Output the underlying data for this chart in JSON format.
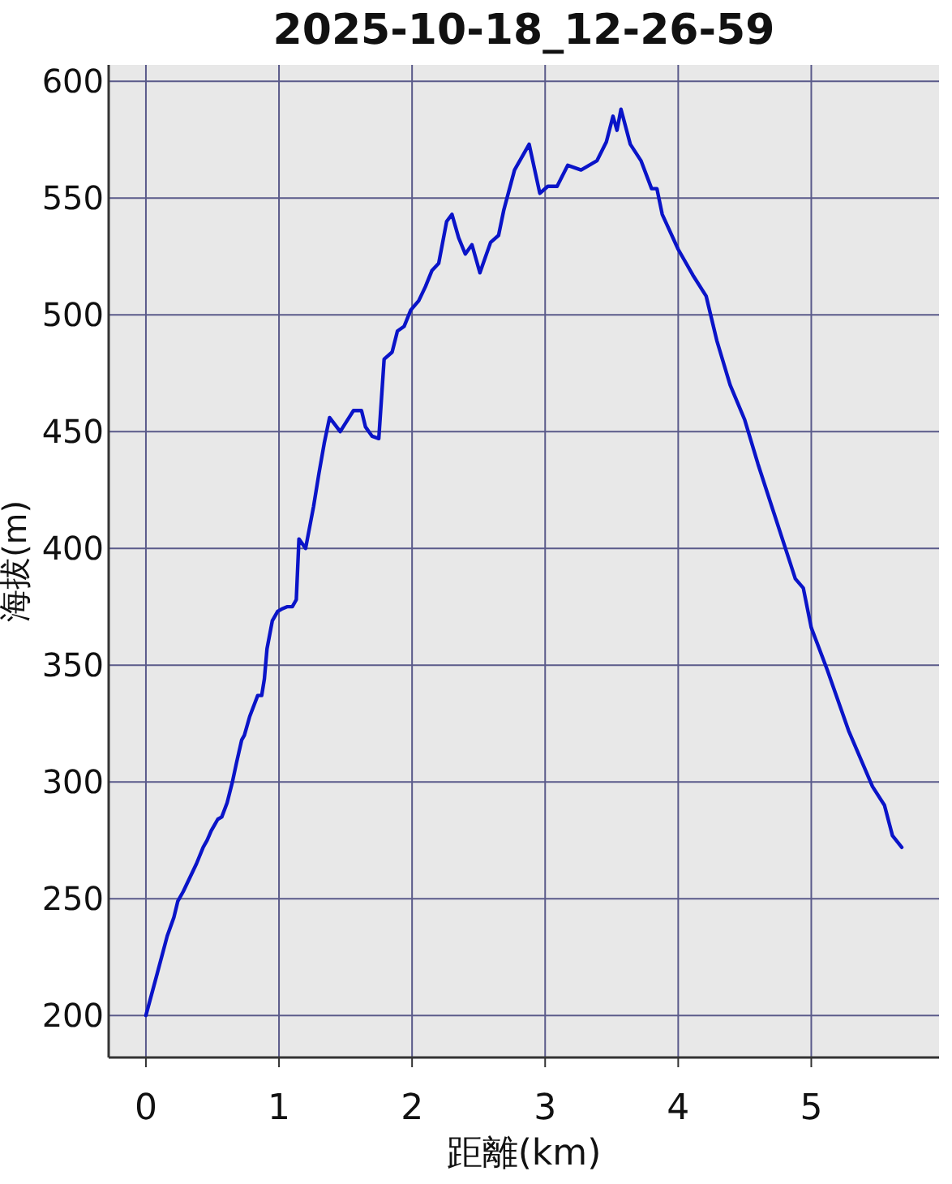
{
  "chart_data": {
    "type": "line",
    "title": "2025-10-18_12-26-59",
    "xlabel": "距離(km)",
    "ylabel": "海拔(m)",
    "x": [
      0,
      0.085,
      0.16,
      0.21,
      0.24,
      0.28,
      0.33,
      0.38,
      0.43,
      0.46,
      0.49,
      0.54,
      0.57,
      0.61,
      0.65,
      0.68,
      0.72,
      0.74,
      0.78,
      0.82,
      0.84,
      0.87,
      0.89,
      0.91,
      0.95,
      0.99,
      1.02,
      1.06,
      1.1,
      1.13,
      1.15,
      1.2,
      1.26,
      1.3,
      1.34,
      1.38,
      1.46,
      1.56,
      1.62,
      1.65,
      1.7,
      1.75,
      1.79,
      1.85,
      1.89,
      1.94,
      1.99,
      2.05,
      2.1,
      2.15,
      2.2,
      2.26,
      2.3,
      2.35,
      2.4,
      2.45,
      2.51,
      2.59,
      2.65,
      2.69,
      2.77,
      2.88,
      2.96,
      3.02,
      3.09,
      3.17,
      3.27,
      3.39,
      3.46,
      3.51,
      3.54,
      3.57,
      3.64,
      3.72,
      3.8,
      3.84,
      3.88,
      4.0,
      4.11,
      4.21,
      4.29,
      4.39,
      4.5,
      4.6,
      4.72,
      4.84,
      4.88,
      4.94,
      5.0,
      5.12,
      5.28,
      5.46,
      5.55,
      5.61,
      5.68
    ],
    "values": [
      200,
      218,
      234,
      242,
      249,
      253,
      259,
      265,
      272,
      275,
      279,
      284,
      285,
      291,
      300,
      308,
      318,
      320,
      328,
      334,
      337,
      337,
      344,
      357,
      369,
      373,
      374,
      375,
      375,
      378,
      404,
      400,
      418,
      432,
      445,
      456,
      450,
      459,
      459,
      452,
      448,
      447,
      481,
      484,
      493,
      495,
      502,
      506,
      512,
      519,
      522,
      540,
      543,
      533,
      526,
      530,
      518,
      531,
      534,
      545,
      562,
      573,
      552,
      555,
      555,
      564,
      562,
      566,
      574,
      585,
      579,
      588,
      573,
      566,
      554,
      554,
      543,
      528,
      517,
      508,
      489,
      470,
      455,
      436,
      415,
      394,
      387,
      383,
      366,
      348,
      322,
      298,
      290,
      277,
      272
    ],
    "color": "#0a14c8",
    "xlim": [
      -0.28,
      5.96
    ],
    "ylim": [
      182,
      607
    ],
    "xticks": [
      0,
      1,
      2,
      3,
      4,
      5
    ],
    "yticks": [
      200,
      250,
      300,
      350,
      400,
      450,
      500,
      550,
      600
    ],
    "grid": true
  }
}
